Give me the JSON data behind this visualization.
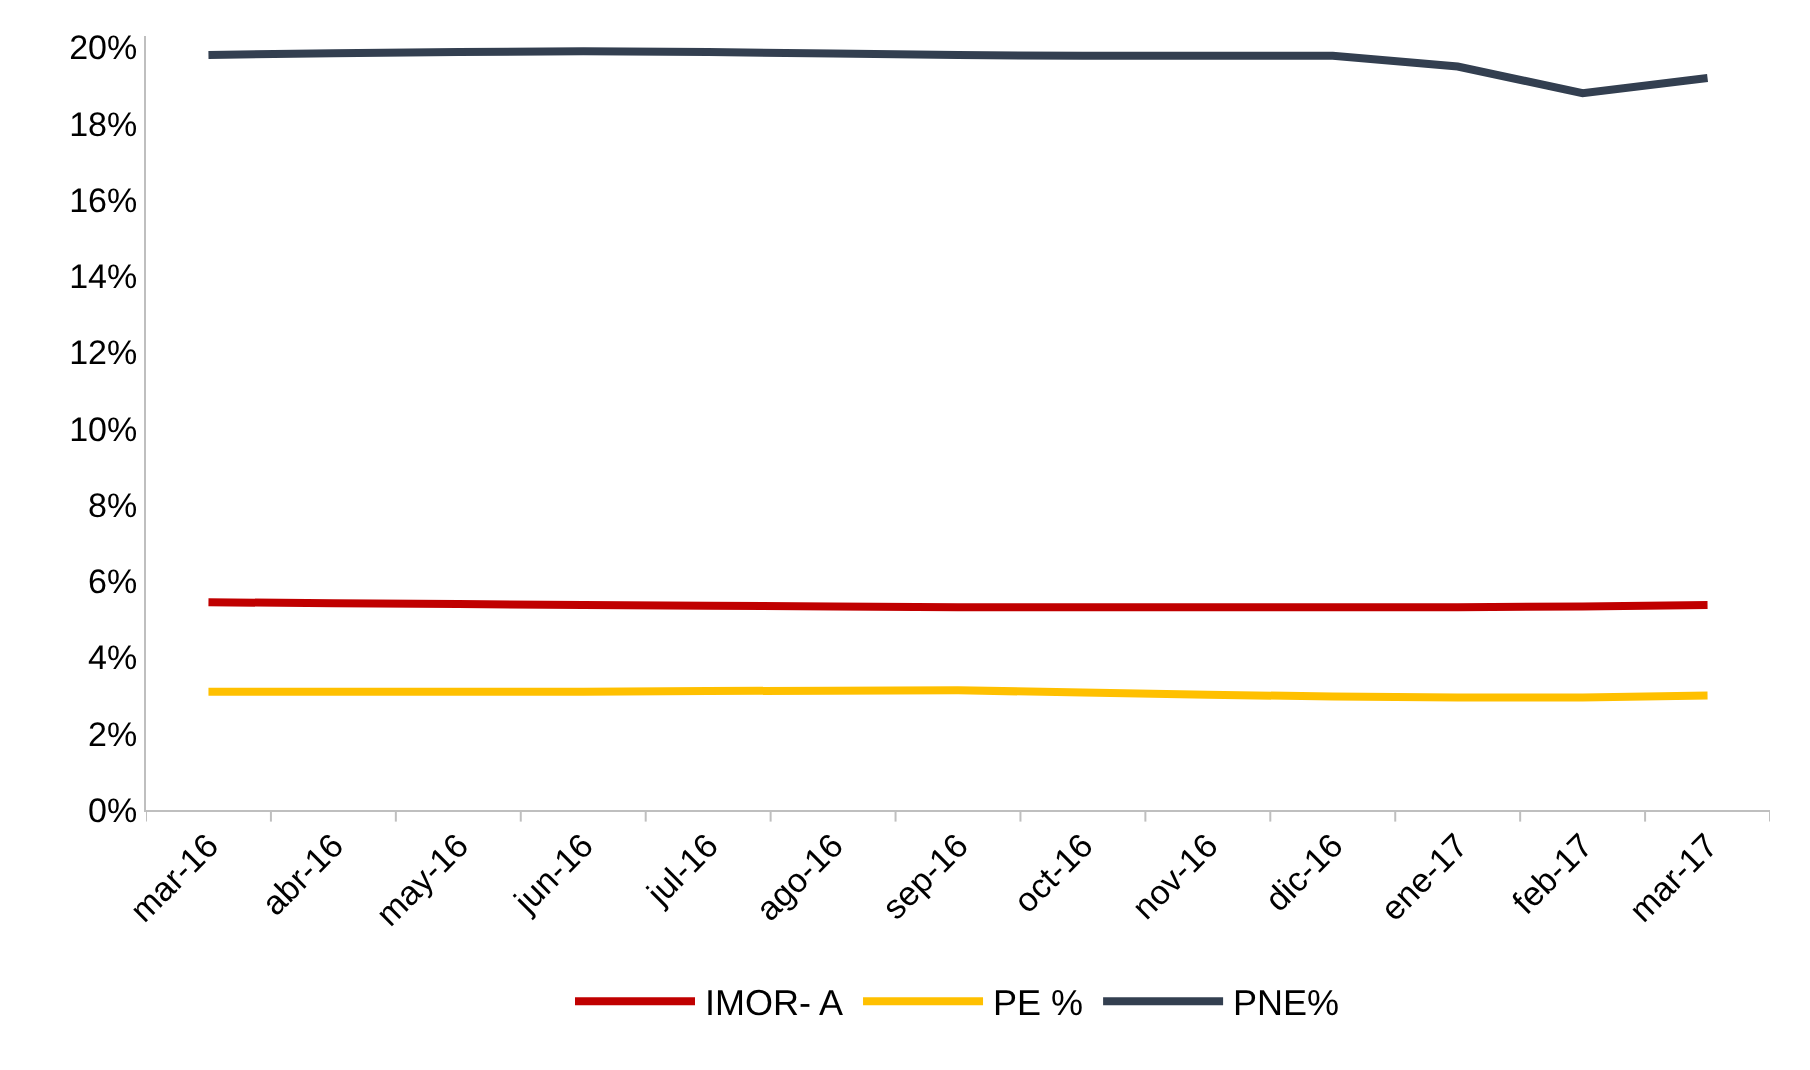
{
  "chart_data": {
    "type": "line",
    "categories": [
      "mar-16",
      "abr-16",
      "may-16",
      "jun-16",
      "jul-16",
      "ago-16",
      "sep-16",
      "oct-16",
      "nov-16",
      "dic-16",
      "ene-17",
      "feb-17",
      "mar-17"
    ],
    "series": [
      {
        "name": "IMOR- A",
        "color": "#c00000",
        "values": [
          5.45,
          5.42,
          5.4,
          5.38,
          5.36,
          5.34,
          5.32,
          5.32,
          5.32,
          5.32,
          5.32,
          5.34,
          5.38
        ]
      },
      {
        "name": "PE %",
        "color": "#ffc000",
        "values": [
          3.1,
          3.1,
          3.1,
          3.1,
          3.12,
          3.13,
          3.14,
          3.08,
          3.02,
          2.98,
          2.95,
          2.95,
          3.0
        ]
      },
      {
        "name": "PNE%",
        "color": "#333f50",
        "values": [
          19.8,
          19.85,
          19.88,
          19.9,
          19.88,
          19.84,
          19.8,
          19.78,
          19.78,
          19.78,
          19.5,
          18.8,
          19.2
        ]
      }
    ],
    "ylim": [
      0,
      20.3
    ],
    "yticks": [
      {
        "value": 0,
        "label": "0%"
      },
      {
        "value": 2,
        "label": "2%"
      },
      {
        "value": 4,
        "label": "4%"
      },
      {
        "value": 6,
        "label": "6%"
      },
      {
        "value": 8,
        "label": "8%"
      },
      {
        "value": 10,
        "label": "10%"
      },
      {
        "value": 12,
        "label": "12%"
      },
      {
        "value": 14,
        "label": "14%"
      },
      {
        "value": 16,
        "label": "16%"
      },
      {
        "value": 18,
        "label": "18%"
      },
      {
        "value": 20,
        "label": "20%"
      }
    ],
    "grid": false,
    "legend": "bottom",
    "marker": "none",
    "line_style": "solid"
  }
}
